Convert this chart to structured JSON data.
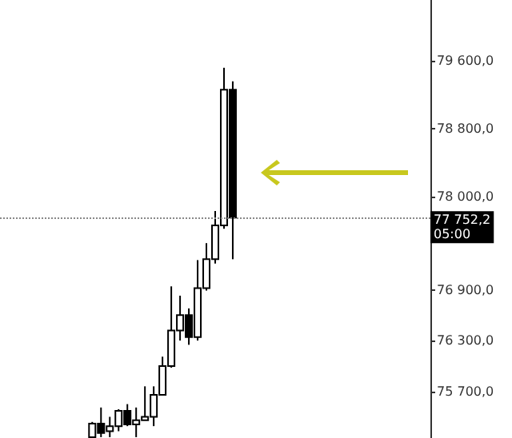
{
  "chart_data": {
    "type": "candlestick",
    "categories": [
      null,
      null,
      null,
      null,
      null,
      null,
      null,
      null,
      null,
      null,
      null,
      null,
      null,
      null,
      null,
      null,
      null,
      null,
      null,
      null,
      null,
      null,
      null,
      null,
      null,
      null,
      null,
      null,
      null,
      null,
      null,
      null,
      null,
      null,
      null,
      null,
      null,
      null,
      null,
      null,
      null,
      null,
      null,
      null,
      null,
      null,
      null,
      null,
      null
    ],
    "ohlc": [
      null,
      null,
      null,
      null,
      null,
      null,
      null,
      null,
      null,
      null,
      [
        75160,
        75340,
        75150,
        75320
      ],
      [
        75320,
        75510,
        75160,
        75210
      ],
      [
        75230,
        75400,
        75160,
        75290
      ],
      [
        75290,
        75490,
        75230,
        75470
      ],
      [
        75470,
        75550,
        75290,
        75310
      ],
      [
        75310,
        75510,
        75160,
        75360
      ],
      [
        75360,
        75760,
        75360,
        75400
      ],
      [
        75400,
        75760,
        75290,
        75660
      ],
      [
        75660,
        76110,
        75660,
        76000
      ],
      [
        76000,
        76940,
        75980,
        76420
      ],
      [
        76420,
        76830,
        76300,
        76600
      ],
      [
        76600,
        76680,
        76250,
        76340
      ],
      [
        76340,
        77250,
        76300,
        76920
      ],
      [
        76920,
        77450,
        76890,
        77260
      ],
      [
        77260,
        77830,
        77210,
        77660
      ],
      [
        77660,
        79520,
        77620,
        79260
      ],
      [
        79260,
        79360,
        77260,
        77752.2
      ],
      null,
      null,
      null,
      null,
      null,
      null,
      null,
      null,
      null,
      null,
      null,
      null,
      null,
      null,
      null,
      null,
      null,
      null,
      null,
      null,
      null,
      null
    ],
    "colors": [
      null,
      null,
      null,
      null,
      null,
      null,
      null,
      null,
      null,
      null,
      "#ffffff",
      "#000000",
      "#ffffff",
      "#ffffff",
      "#000000",
      "#ffffff",
      "#ffffff",
      "#ffffff",
      "#ffffff",
      "#ffffff",
      "#ffffff",
      "#000000",
      "#ffffff",
      "#ffffff",
      "#ffffff",
      "#ffffff",
      "#000000",
      null,
      null,
      null,
      null,
      null,
      null,
      null,
      null,
      null,
      null,
      null,
      null,
      null,
      null,
      null,
      null,
      null,
      null,
      null,
      null,
      null,
      null
    ],
    "ylim": [
      75150,
      80320
    ],
    "yticks": [
      {
        "value": 75700,
        "label": "75 700,0"
      },
      {
        "value": 76300,
        "label": "76 300,0"
      },
      {
        "value": 76900,
        "label": "76 900,0"
      },
      {
        "value": 78000,
        "label": "78 000,0"
      },
      {
        "value": 78800,
        "label": "78 800,0"
      },
      {
        "value": 79600,
        "label": "79 600,0"
      }
    ],
    "tick_labels": "y",
    "grid": false,
    "ref_lines": [
      {
        "axis": "y",
        "value": 77752.2,
        "label": "77 752,2\n05:00",
        "color": "#888888",
        "line_style": "dotted"
      }
    ]
  }
}
